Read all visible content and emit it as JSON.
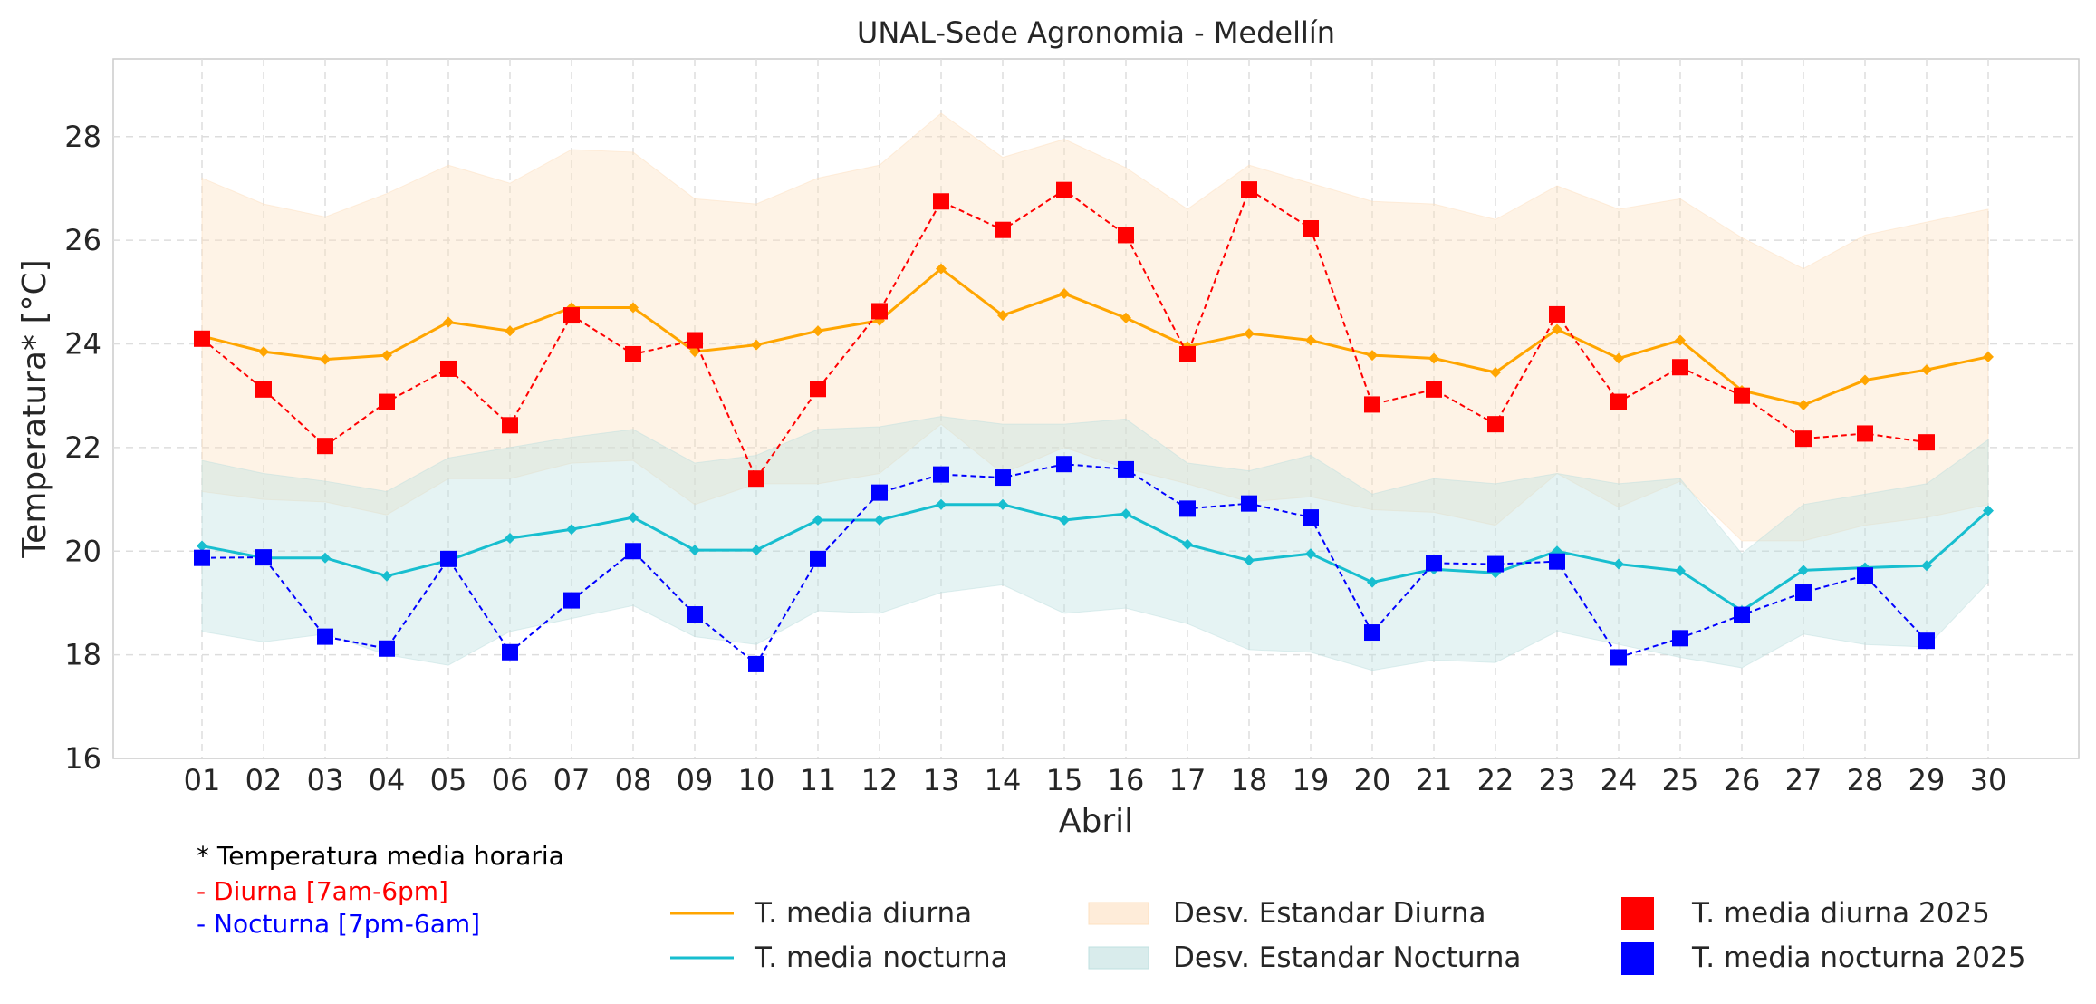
{
  "chart_data": {
    "type": "line",
    "title": "UNAL-Sede Agronomia - Medellín",
    "xlabel": "Abril",
    "ylabel": "Temperatura* [°C]",
    "ylim": [
      16,
      29.5
    ],
    "yticks": [
      16,
      18,
      20,
      22,
      24,
      26,
      28
    ],
    "grid": true,
    "categories": [
      "01",
      "02",
      "03",
      "04",
      "05",
      "06",
      "07",
      "08",
      "09",
      "10",
      "11",
      "12",
      "13",
      "14",
      "15",
      "16",
      "17",
      "18",
      "19",
      "20",
      "21",
      "22",
      "23",
      "24",
      "25",
      "26",
      "27",
      "28",
      "29",
      "30"
    ],
    "series": [
      {
        "name": "T. media diurna",
        "type": "line",
        "color": "#FFA500",
        "values": [
          24.15,
          23.85,
          23.7,
          23.78,
          24.42,
          24.25,
          24.7,
          24.7,
          23.85,
          23.98,
          24.25,
          24.45,
          25.45,
          24.55,
          24.97,
          24.5,
          23.95,
          24.2,
          24.07,
          23.78,
          23.72,
          23.45,
          24.28,
          23.72,
          24.07,
          23.1,
          22.82,
          23.3,
          23.5,
          23.75
        ]
      },
      {
        "name": "T. media nocturna",
        "type": "line",
        "color": "#17BECF",
        "values": [
          20.1,
          19.87,
          19.87,
          19.52,
          19.82,
          20.25,
          20.42,
          20.65,
          20.02,
          20.02,
          20.6,
          20.6,
          20.9,
          20.9,
          20.6,
          20.72,
          20.13,
          19.82,
          19.95,
          19.4,
          19.65,
          19.58,
          20.0,
          19.75,
          19.62,
          18.85,
          19.63,
          19.68,
          19.72,
          20.78
        ]
      },
      {
        "name": "Desv. Estandar Diurna",
        "type": "band",
        "color": "#FDE0C0",
        "upper": [
          27.2,
          26.7,
          26.45,
          26.9,
          27.45,
          27.1,
          27.75,
          27.7,
          26.8,
          26.7,
          27.2,
          27.45,
          28.45,
          27.6,
          27.95,
          27.4,
          26.6,
          27.45,
          27.1,
          26.75,
          26.7,
          26.4,
          27.05,
          26.6,
          26.8,
          26.05,
          25.45,
          26.1,
          26.35,
          26.6
        ],
        "lower": [
          21.15,
          21.0,
          20.95,
          20.7,
          21.4,
          21.4,
          21.7,
          21.75,
          20.9,
          21.3,
          21.3,
          21.5,
          22.45,
          21.5,
          22.0,
          21.6,
          21.3,
          20.95,
          21.05,
          20.8,
          20.75,
          20.5,
          21.5,
          20.85,
          21.35,
          20.2,
          20.2,
          20.5,
          20.65,
          20.9
        ]
      },
      {
        "name": "Desv. Estandar Nocturna",
        "type": "band",
        "color": "#BFE0E0",
        "upper": [
          21.75,
          21.5,
          21.35,
          21.15,
          21.8,
          22.0,
          22.2,
          22.35,
          21.7,
          21.85,
          22.35,
          22.4,
          22.6,
          22.45,
          22.45,
          22.55,
          21.7,
          21.55,
          21.85,
          21.1,
          21.4,
          21.3,
          21.5,
          21.3,
          21.4,
          19.95,
          20.9,
          21.1,
          21.3,
          22.15
        ],
        "lower": [
          18.45,
          18.25,
          18.4,
          18.0,
          17.8,
          18.45,
          18.7,
          18.95,
          18.35,
          18.2,
          18.85,
          18.8,
          19.2,
          19.35,
          18.8,
          18.9,
          18.6,
          18.1,
          18.05,
          17.7,
          17.9,
          17.85,
          18.45,
          18.2,
          17.95,
          17.75,
          18.4,
          18.2,
          18.15,
          19.4
        ]
      },
      {
        "name": "T. media diurna 2025",
        "type": "marker",
        "color": "#FF0000",
        "values": [
          24.1,
          23.12,
          22.03,
          22.88,
          23.52,
          22.43,
          24.55,
          23.8,
          24.07,
          21.4,
          23.13,
          24.63,
          26.75,
          26.2,
          26.97,
          26.1,
          23.8,
          26.98,
          26.23,
          22.83,
          23.12,
          22.45,
          24.57,
          22.88,
          23.55,
          23.0,
          22.17,
          22.27,
          22.1,
          null
        ]
      },
      {
        "name": "T. media nocturna 2025",
        "type": "marker",
        "color": "#0000FF",
        "values": [
          19.87,
          19.88,
          18.35,
          18.12,
          19.85,
          18.05,
          19.05,
          20.0,
          18.78,
          17.82,
          19.85,
          21.13,
          21.48,
          21.42,
          21.68,
          21.58,
          20.82,
          20.92,
          20.65,
          18.43,
          19.77,
          19.75,
          19.8,
          17.95,
          18.32,
          18.77,
          19.2,
          19.53,
          18.27,
          null
        ]
      }
    ],
    "legend_position": "bottom",
    "legend": [
      "T. media diurna",
      "T. media nocturna",
      "Desv. Estandar Diurna",
      "Desv. Estandar Nocturna",
      "T. media diurna 2025",
      "T. media nocturna 2025"
    ]
  },
  "notes": {
    "asterisk": "* Temperatura media horaria",
    "diurna": "- Diurna [7am-6pm]",
    "nocturna": "- Nocturna [7pm-6am]",
    "diurna_color": "#FF0000",
    "nocturna_color": "#0000FF"
  }
}
